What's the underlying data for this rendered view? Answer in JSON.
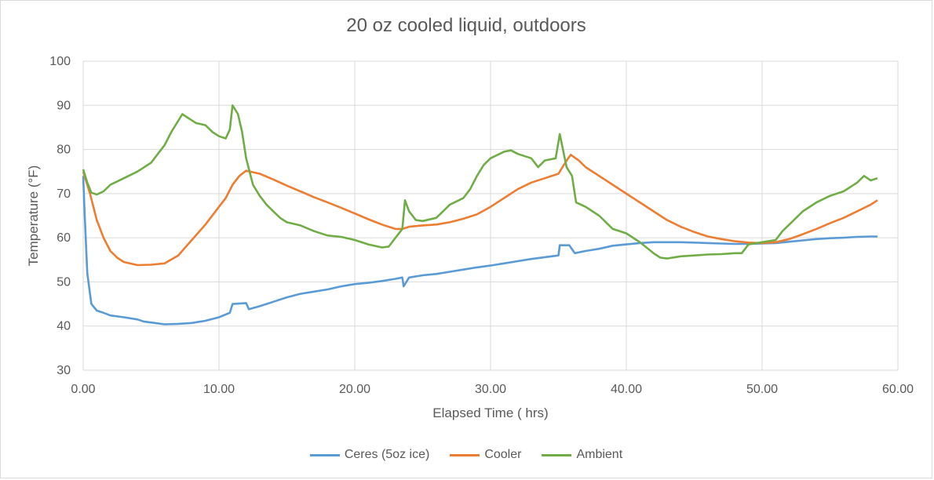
{
  "chart_data": {
    "type": "line",
    "title": "20 oz cooled liquid, outdoors",
    "xlabel": "Elapsed Time ( hrs)",
    "ylabel": "Temperature (°F)",
    "xlim": [
      0,
      60
    ],
    "ylim": [
      30,
      100
    ],
    "x_ticks": [
      "0.00",
      "10.00",
      "20.00",
      "30.00",
      "40.00",
      "50.00",
      "60.00"
    ],
    "y_ticks": [
      "30",
      "40",
      "50",
      "60",
      "70",
      "80",
      "90",
      "100"
    ],
    "grid": true,
    "legend_position": "bottom",
    "series": [
      {
        "name": "Ceres (5oz ice)",
        "color": "#5b9bd5",
        "points": [
          [
            0,
            74
          ],
          [
            0.1,
            66
          ],
          [
            0.3,
            52
          ],
          [
            0.6,
            45
          ],
          [
            1,
            43.5
          ],
          [
            1.5,
            43
          ],
          [
            2,
            42.4
          ],
          [
            3,
            42
          ],
          [
            4,
            41.5
          ],
          [
            4.5,
            41
          ],
          [
            5,
            40.8
          ],
          [
            6,
            40.4
          ],
          [
            7,
            40.5
          ],
          [
            8,
            40.7
          ],
          [
            9,
            41.2
          ],
          [
            10,
            42
          ],
          [
            10.8,
            43
          ],
          [
            11,
            45
          ],
          [
            12,
            45.2
          ],
          [
            12.2,
            43.8
          ],
          [
            13,
            44.5
          ],
          [
            14,
            45.5
          ],
          [
            15,
            46.5
          ],
          [
            16,
            47.3
          ],
          [
            17,
            47.8
          ],
          [
            18,
            48.3
          ],
          [
            19,
            49
          ],
          [
            20,
            49.5
          ],
          [
            21,
            49.8
          ],
          [
            22,
            50.2
          ],
          [
            23,
            50.7
          ],
          [
            23.5,
            51
          ],
          [
            23.6,
            49
          ],
          [
            24,
            51
          ],
          [
            25,
            51.5
          ],
          [
            26,
            51.8
          ],
          [
            27,
            52.3
          ],
          [
            28,
            52.8
          ],
          [
            29,
            53.3
          ],
          [
            30,
            53.7
          ],
          [
            31,
            54.2
          ],
          [
            32,
            54.7
          ],
          [
            33,
            55.2
          ],
          [
            34,
            55.6
          ],
          [
            35,
            56
          ],
          [
            35.1,
            58.3
          ],
          [
            35.8,
            58.3
          ],
          [
            36.2,
            56.5
          ],
          [
            37,
            57
          ],
          [
            38,
            57.5
          ],
          [
            39,
            58.2
          ],
          [
            40,
            58.5
          ],
          [
            41,
            58.8
          ],
          [
            42,
            59
          ],
          [
            43,
            59
          ],
          [
            44,
            59
          ],
          [
            45,
            58.9
          ],
          [
            46,
            58.8
          ],
          [
            47,
            58.7
          ],
          [
            48,
            58.6
          ],
          [
            49,
            58.6
          ],
          [
            50,
            58.7
          ],
          [
            51,
            58.8
          ],
          [
            52,
            59.1
          ],
          [
            53,
            59.4
          ],
          [
            54,
            59.7
          ],
          [
            55,
            59.9
          ],
          [
            56,
            60
          ],
          [
            57,
            60.2
          ],
          [
            58,
            60.3
          ],
          [
            58.5,
            60.3
          ]
        ]
      },
      {
        "name": "Cooler",
        "color": "#ed7d31",
        "points": [
          [
            0,
            75
          ],
          [
            0.5,
            70
          ],
          [
            1,
            64
          ],
          [
            1.5,
            60
          ],
          [
            2,
            57
          ],
          [
            2.5,
            55.5
          ],
          [
            3,
            54.5
          ],
          [
            4,
            53.8
          ],
          [
            5,
            53.9
          ],
          [
            6,
            54.2
          ],
          [
            7,
            56
          ],
          [
            8,
            59.5
          ],
          [
            9,
            63
          ],
          [
            10,
            67
          ],
          [
            10.5,
            69
          ],
          [
            11,
            72
          ],
          [
            11.5,
            74
          ],
          [
            12,
            75.2
          ],
          [
            13,
            74.5
          ],
          [
            14,
            73.2
          ],
          [
            15,
            71.8
          ],
          [
            16,
            70.5
          ],
          [
            17,
            69.2
          ],
          [
            18,
            68
          ],
          [
            19,
            66.8
          ],
          [
            20,
            65.5
          ],
          [
            21,
            64.2
          ],
          [
            22,
            63
          ],
          [
            23,
            62
          ],
          [
            23.5,
            62
          ],
          [
            24,
            62.5
          ],
          [
            25,
            62.8
          ],
          [
            26,
            63
          ],
          [
            27,
            63.5
          ],
          [
            28,
            64.3
          ],
          [
            29,
            65.3
          ],
          [
            30,
            67
          ],
          [
            31,
            69
          ],
          [
            32,
            71
          ],
          [
            33,
            72.5
          ],
          [
            34,
            73.5
          ],
          [
            35,
            74.5
          ],
          [
            35.5,
            77
          ],
          [
            35.9,
            78.8
          ],
          [
            36.5,
            77.5
          ],
          [
            37,
            76
          ],
          [
            38,
            74
          ],
          [
            39,
            72
          ],
          [
            40,
            70
          ],
          [
            41,
            68
          ],
          [
            42,
            66
          ],
          [
            43,
            64
          ],
          [
            44,
            62.5
          ],
          [
            45,
            61.3
          ],
          [
            46,
            60.3
          ],
          [
            47,
            59.7
          ],
          [
            48,
            59.2
          ],
          [
            49,
            58.9
          ],
          [
            50,
            58.8
          ],
          [
            51,
            59
          ],
          [
            52,
            59.7
          ],
          [
            53,
            60.8
          ],
          [
            54,
            62
          ],
          [
            55,
            63.3
          ],
          [
            56,
            64.5
          ],
          [
            57,
            66
          ],
          [
            58,
            67.5
          ],
          [
            58.5,
            68.5
          ]
        ]
      },
      {
        "name": "Ambient",
        "color": "#70ad47",
        "points": [
          [
            0,
            75.5
          ],
          [
            0.3,
            72.5
          ],
          [
            0.6,
            70.2
          ],
          [
            1,
            69.8
          ],
          [
            1.5,
            70.5
          ],
          [
            2,
            72
          ],
          [
            3,
            73.5
          ],
          [
            4,
            75
          ],
          [
            5,
            77
          ],
          [
            5.5,
            79
          ],
          [
            6,
            81
          ],
          [
            6.5,
            84
          ],
          [
            7,
            86.5
          ],
          [
            7.3,
            88
          ],
          [
            7.8,
            87
          ],
          [
            8.3,
            86
          ],
          [
            9,
            85.5
          ],
          [
            9.5,
            84
          ],
          [
            10,
            83
          ],
          [
            10.5,
            82.5
          ],
          [
            10.8,
            84.5
          ],
          [
            11,
            90
          ],
          [
            11.4,
            88
          ],
          [
            11.7,
            84
          ],
          [
            12,
            78
          ],
          [
            12.5,
            72
          ],
          [
            13,
            69.5
          ],
          [
            13.5,
            67.5
          ],
          [
            14,
            66
          ],
          [
            14.5,
            64.5
          ],
          [
            15,
            63.5
          ],
          [
            16,
            62.8
          ],
          [
            17,
            61.5
          ],
          [
            18,
            60.5
          ],
          [
            19,
            60.2
          ],
          [
            20,
            59.5
          ],
          [
            21,
            58.5
          ],
          [
            22,
            57.8
          ],
          [
            22.5,
            58
          ],
          [
            23,
            60
          ],
          [
            23.5,
            62
          ],
          [
            23.7,
            68.5
          ],
          [
            24,
            66
          ],
          [
            24.5,
            64
          ],
          [
            25,
            63.8
          ],
          [
            26,
            64.5
          ],
          [
            26.5,
            66
          ],
          [
            27,
            67.5
          ],
          [
            28,
            69
          ],
          [
            28.5,
            71
          ],
          [
            29,
            74
          ],
          [
            29.5,
            76.5
          ],
          [
            30,
            78
          ],
          [
            31,
            79.5
          ],
          [
            31.5,
            79.8
          ],
          [
            32,
            79
          ],
          [
            33,
            78
          ],
          [
            33.5,
            76
          ],
          [
            34,
            77.5
          ],
          [
            34.8,
            78
          ],
          [
            35.1,
            83.5
          ],
          [
            35.4,
            79
          ],
          [
            35.6,
            76
          ],
          [
            36,
            74
          ],
          [
            36.3,
            68
          ],
          [
            37,
            67
          ],
          [
            38,
            65
          ],
          [
            38.5,
            63.5
          ],
          [
            39,
            62
          ],
          [
            40,
            61
          ],
          [
            41,
            59
          ],
          [
            42,
            56.5
          ],
          [
            42.5,
            55.5
          ],
          [
            43,
            55.3
          ],
          [
            44,
            55.8
          ],
          [
            45,
            56
          ],
          [
            46,
            56.2
          ],
          [
            47,
            56.3
          ],
          [
            48,
            56.5
          ],
          [
            48.5,
            56.5
          ],
          [
            49,
            58.5
          ],
          [
            50,
            59
          ],
          [
            51,
            59.5
          ],
          [
            51.5,
            61.5
          ],
          [
            52,
            63
          ],
          [
            52.5,
            64.5
          ],
          [
            53,
            66
          ],
          [
            54,
            68
          ],
          [
            55,
            69.5
          ],
          [
            56,
            70.5
          ],
          [
            57,
            72.5
          ],
          [
            57.5,
            74
          ],
          [
            58,
            73
          ],
          [
            58.5,
            73.5
          ]
        ]
      }
    ]
  }
}
